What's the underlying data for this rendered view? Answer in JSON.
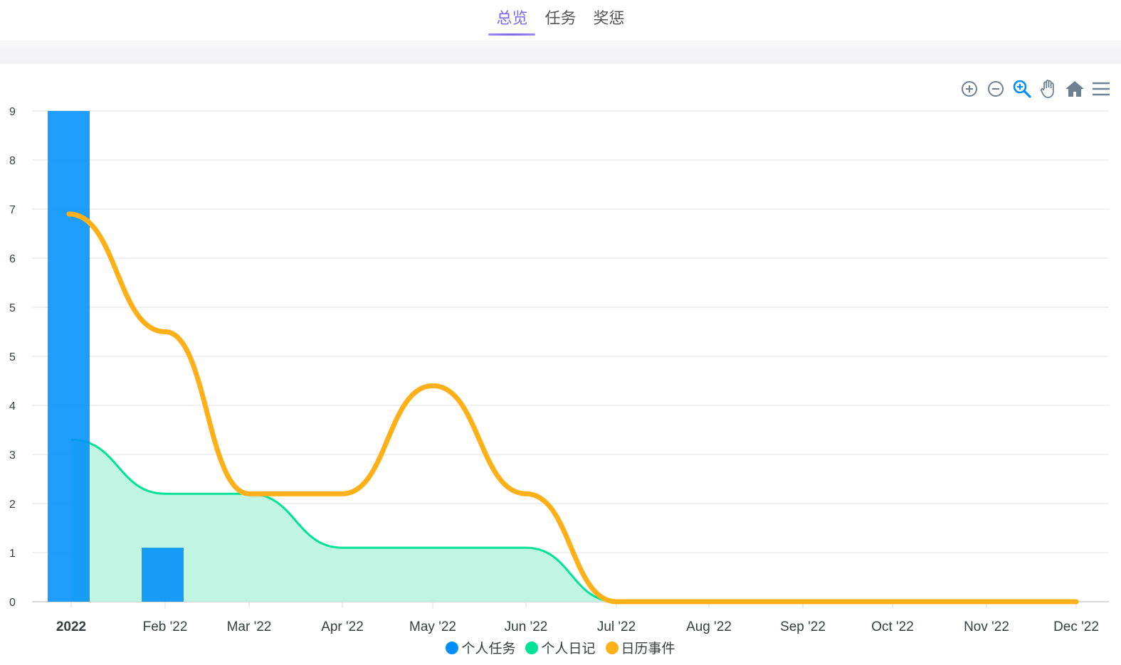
{
  "tabs": [
    {
      "label": "总览",
      "active": true
    },
    {
      "label": "任务",
      "active": false
    },
    {
      "label": "奖惩",
      "active": false
    }
  ],
  "toolbar": {
    "icons": [
      "zoom-in-icon",
      "zoom-out-icon",
      "selection-zoom-icon",
      "pan-hand-icon",
      "reset-home-icon",
      "menu-icon"
    ],
    "colors": {
      "default": "#6e8192",
      "active": "#008ffb"
    }
  },
  "chart_data": {
    "type": "line",
    "x": [
      "2022-01",
      "2022-02",
      "2022-03",
      "2022-04",
      "2022-05",
      "2022-06",
      "2022-07",
      "2022-08",
      "2022-09",
      "2022-10",
      "2022-11",
      "2022-12"
    ],
    "x_tick_labels": [
      "2022",
      "Feb '22",
      "Mar '22",
      "Apr '22",
      "May '22",
      "Jun '22",
      "Jul '22",
      "Aug '22",
      "Sep '22",
      "Oct '22",
      "Nov '22",
      "Dec '22"
    ],
    "y_tick_labels": [
      "0",
      "1",
      "2",
      "3",
      "4",
      "5",
      "5",
      "6",
      "7",
      "8",
      "9"
    ],
    "ylim": [
      0,
      10
    ],
    "grid": true,
    "legend_position": "bottom",
    "series": [
      {
        "name": "个人任务",
        "type": "bar",
        "color": "#008ffb",
        "values": [
          10,
          1.1,
          0,
          0,
          0,
          0,
          0,
          0,
          0,
          0,
          0,
          0
        ]
      },
      {
        "name": "个人日记",
        "type": "area",
        "color": "#00e396",
        "values": [
          3.3,
          2.2,
          2.2,
          1.1,
          1.1,
          1.1,
          0,
          0,
          0,
          0,
          0,
          0
        ]
      },
      {
        "name": "日历事件",
        "type": "line",
        "color": "#feb019",
        "values": [
          8.8,
          5.5,
          2.2,
          2.2,
          4.4,
          2.2,
          0,
          0,
          0,
          0,
          0,
          0
        ]
      }
    ]
  }
}
